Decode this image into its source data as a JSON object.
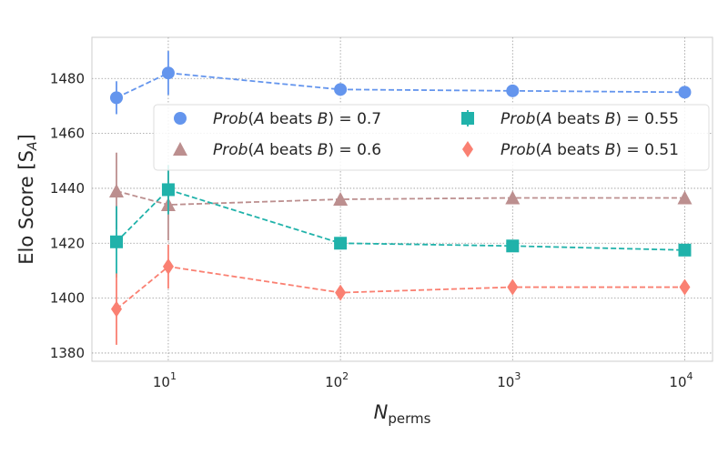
{
  "chart_data": {
    "type": "line",
    "title": "",
    "xlabel": "N",
    "xlabel_sub": "perms",
    "ylabel": "Elo Score [S",
    "ylabel_sub": "A",
    "ylabel_close": "]",
    "x_scale": "log",
    "x": [
      5,
      10,
      100,
      1000,
      10000
    ],
    "xlim": [
      3.6,
      14500
    ],
    "ylim": [
      1377,
      1495
    ],
    "x_ticks": [
      {
        "value": 10,
        "base": "10",
        "exp": "1"
      },
      {
        "value": 100,
        "base": "10",
        "exp": "2"
      },
      {
        "value": 1000,
        "base": "10",
        "exp": "3"
      },
      {
        "value": 10000,
        "base": "10",
        "exp": "4"
      }
    ],
    "y_ticks": [
      {
        "value": 1380,
        "label": "1380"
      },
      {
        "value": 1400,
        "label": "1400"
      },
      {
        "value": 1420,
        "label": "1420"
      },
      {
        "value": 1440,
        "label": "1440"
      },
      {
        "value": 1460,
        "label": "1460"
      },
      {
        "value": 1480,
        "label": "1480"
      }
    ],
    "grid": true,
    "legend_position": "upper-right",
    "series": [
      {
        "name": "Prob(A beats B) = 0.7",
        "legend_italic": "Prob",
        "legend_mid": "(",
        "legend_italic2": "A",
        "legend_mid2": " beats ",
        "legend_italic3": "B",
        "legend_end": ") = 0.7",
        "color": "#6495ED",
        "marker": "circle",
        "values": [
          1473,
          1482,
          1476,
          1475.5,
          1475
        ],
        "errors": [
          6,
          8,
          1,
          1,
          1
        ]
      },
      {
        "name": "Prob(A beats B) = 0.6",
        "legend_italic": "Prob",
        "legend_mid": "(",
        "legend_italic2": "A",
        "legend_mid2": " beats ",
        "legend_italic3": "B",
        "legend_end": ") = 0.6",
        "color": "#BC8F8F",
        "marker": "triangle",
        "values": [
          1439,
          1434,
          1436,
          1436.5,
          1436.5
        ],
        "errors": [
          14,
          13,
          1,
          1,
          1
        ]
      },
      {
        "name": "Prob(A beats B) = 0.55",
        "legend_italic": "Prob",
        "legend_mid": "(",
        "legend_italic2": "A",
        "legend_mid2": " beats ",
        "legend_italic3": "B",
        "legend_end": ") = 0.55",
        "color": "#20B2AA",
        "marker": "square",
        "values": [
          1420.5,
          1439.5,
          1420,
          1419,
          1417.5
        ],
        "errors": [
          13,
          9,
          1,
          1,
          1
        ]
      },
      {
        "name": "Prob(A beats B) = 0.51",
        "legend_italic": "Prob",
        "legend_mid": "(",
        "legend_italic2": "A",
        "legend_mid2": " beats ",
        "legend_italic3": "B",
        "legend_end": ") = 0.51",
        "color": "#FA8072",
        "marker": "diamond",
        "values": [
          1396,
          1411.5,
          1402,
          1404,
          1404
        ],
        "errors": [
          13,
          8,
          1,
          1,
          1
        ]
      }
    ]
  }
}
